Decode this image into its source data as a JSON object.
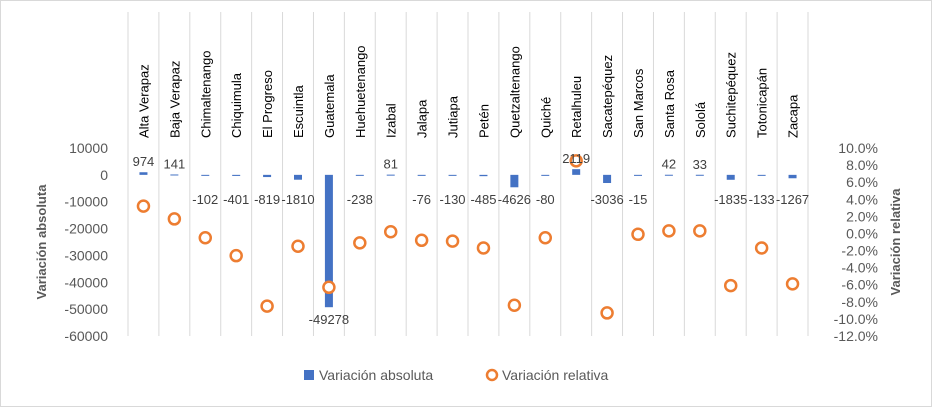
{
  "chart_data": {
    "type": "bar",
    "categories": [
      "Alta Verapaz",
      "Baja Verapaz",
      "Chimaltenango",
      "Chiquimula",
      "El Progreso",
      "Escuintla",
      "Guatemala",
      "Huehuetenango",
      "Izabal",
      "Jalapa",
      "Jutiapa",
      "Petén",
      "Quetzaltenango",
      "Quiché",
      "Retalhuleu",
      "Sacatepéquez",
      "San Marcos",
      "Santa Rosa",
      "Sololá",
      "Suchitepéquez",
      "Totonicapán",
      "Zacapa"
    ],
    "series": [
      {
        "name": "Variación absoluta",
        "kind": "bar",
        "axis": "left",
        "color": "#4472C4",
        "values": [
          974,
          141,
          -102,
          -401,
          -819,
          -1810,
          -49278,
          -238,
          81,
          -76,
          -130,
          -485,
          -4626,
          -80,
          2119,
          -3036,
          -15,
          42,
          33,
          -1835,
          -133,
          -1267
        ],
        "labels": [
          "974",
          "141",
          "-102",
          "-401",
          "-819",
          "-1810",
          "-49278",
          "-238",
          "81",
          "-76",
          "-130",
          "-485",
          "-4626",
          "-80",
          "2119",
          "-3036",
          "-15",
          "42",
          "33",
          "-1835",
          "-133",
          "-1267"
        ]
      },
      {
        "name": "Variación relativa",
        "kind": "marker",
        "axis": "right",
        "color": "#ED7D31",
        "values": [
          3.2,
          1.7,
          -0.5,
          -2.6,
          -8.5,
          -1.5,
          -6.3,
          -1.1,
          0.2,
          -0.8,
          -0.9,
          -1.7,
          -8.4,
          -0.5,
          8.5,
          -9.3,
          -0.1,
          0.3,
          0.3,
          -6.1,
          -1.7,
          -5.9
        ]
      }
    ],
    "ylabel_left": "Variación absoluta",
    "ylabel_right": "Variación relativa",
    "ylim_left": [
      -60000,
      10000
    ],
    "yticks_left": [
      10000,
      0,
      -10000,
      -20000,
      -30000,
      -40000,
      -50000,
      -60000
    ],
    "yticks_left_labels": [
      "10000",
      "0",
      "-10000",
      "-20000",
      "-30000",
      "-40000",
      "-50000",
      "-60000"
    ],
    "ylim_right": [
      -12,
      10
    ],
    "yticks_right": [
      10,
      8,
      6,
      4,
      2,
      0,
      -2,
      -4,
      -6,
      -8,
      -10,
      -12
    ],
    "yticks_right_labels": [
      "10.0%",
      "8.0%",
      "6.0%",
      "4.0%",
      "2.0%",
      "0.0%",
      "-2.0%",
      "-4.0%",
      "-6.0%",
      "-8.0%",
      "-10.0%",
      "-12.0%"
    ],
    "grid": "vertical",
    "legend_position": "bottom"
  }
}
